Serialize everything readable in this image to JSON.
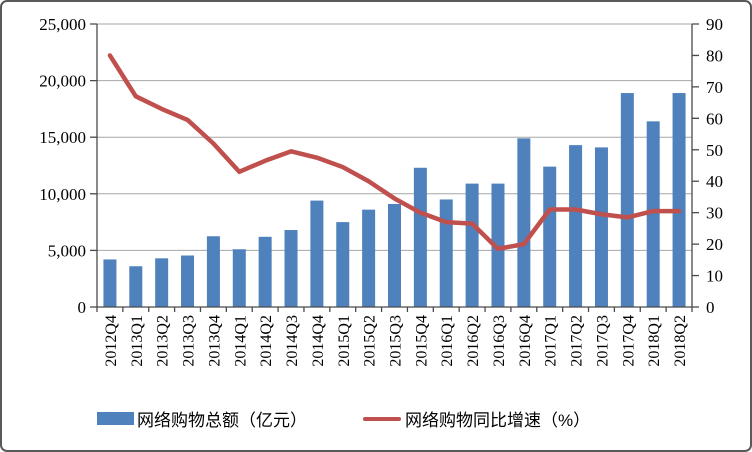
{
  "page": {
    "background_color": "#ffffff",
    "border_color": "#595959"
  },
  "chart_data": {
    "type": "bar+line-dual-axis",
    "title": "",
    "categories": [
      "2012Q4",
      "2013Q1",
      "2013Q2",
      "2013Q3",
      "2013Q4",
      "2014Q1",
      "2014Q2",
      "2014Q3",
      "2014Q4",
      "2015Q1",
      "2015Q2",
      "2015Q3",
      "2015Q4",
      "2016Q1",
      "2016Q2",
      "2016Q3",
      "2016Q4",
      "2017Q1",
      "2017Q2",
      "2017Q3",
      "2017Q4",
      "2018Q1",
      "2018Q2"
    ],
    "series": [
      {
        "name": "网络购物总额（亿元）",
        "type": "bar",
        "axis": "left",
        "color": "#4F81BD",
        "values": [
          4200,
          3600,
          4300,
          4550,
          6250,
          5100,
          6200,
          6800,
          9400,
          7500,
          8600,
          9100,
          12300,
          9500,
          10900,
          10900,
          14900,
          12400,
          14300,
          14100,
          18900,
          16400,
          18900
        ]
      },
      {
        "name": "网络购物同比增速（%）",
        "type": "line",
        "axis": "right",
        "color": "#C0504D",
        "values": [
          80,
          67,
          63,
          59.5,
          52,
          43,
          46.5,
          49.5,
          47.5,
          44.5,
          40,
          34.5,
          30,
          27,
          26.5,
          18.5,
          20,
          31,
          31,
          29.5,
          28.5,
          30.5,
          30.5
        ]
      }
    ],
    "left_axis": {
      "min": 0,
      "max": 25000,
      "step": 5000,
      "tick_labels": [
        "0",
        "5,000",
        "10,000",
        "15,000",
        "20,000",
        "25,000"
      ]
    },
    "right_axis": {
      "min": 0,
      "max": 90,
      "step": 10,
      "tick_labels": [
        "0",
        "10",
        "20",
        "30",
        "40",
        "50",
        "60",
        "70",
        "80",
        "90"
      ]
    },
    "grid": "horizontal",
    "legend_position": "bottom",
    "gridline_color": "#A6A6A6",
    "axis_line_color": "#4a4a4a",
    "text_color": "#000000"
  }
}
